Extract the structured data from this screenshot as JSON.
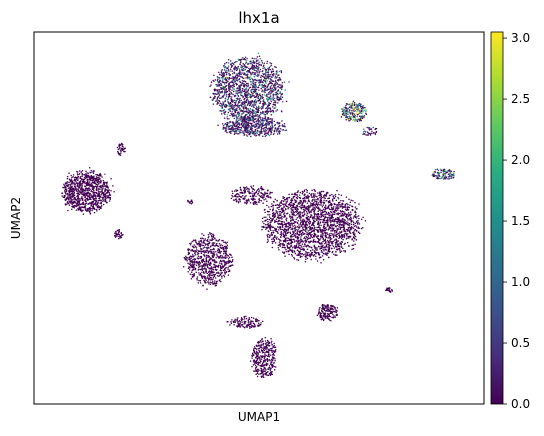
{
  "chart_data": {
    "type": "scatter",
    "title": "lhx1a",
    "xlabel": "UMAP1",
    "ylabel": "UMAP2",
    "x_ticks": [],
    "y_ticks": [],
    "colormap": "viridis",
    "color_range": [
      0.0,
      3.05
    ],
    "colorbar_ticks": [
      "0.0",
      "0.5",
      "1.0",
      "1.5",
      "2.0",
      "2.5",
      "3.0"
    ],
    "point_color_base": "#440154",
    "clusters": [
      {
        "id": "top-center",
        "x": 7.6,
        "y": 8.4,
        "rx": 1.6,
        "ry": 1.15,
        "n": 1500,
        "mean_expr": 0.55
      },
      {
        "id": "top-center-lower",
        "x": 7.8,
        "y": 7.3,
        "rx": 1.35,
        "ry": 0.35,
        "n": 500,
        "mean_expr": 0.45
      },
      {
        "id": "top-right-small",
        "x": 11.6,
        "y": 7.75,
        "rx": 0.55,
        "ry": 0.35,
        "n": 220,
        "mean_expr": 1.85
      },
      {
        "id": "top-right-tail",
        "x": 12.2,
        "y": 7.15,
        "rx": 0.35,
        "ry": 0.15,
        "n": 40,
        "mean_expr": 0.6
      },
      {
        "id": "far-right",
        "x": 15.0,
        "y": 5.85,
        "rx": 0.5,
        "ry": 0.2,
        "n": 120,
        "mean_expr": 1.3
      },
      {
        "id": "left-large",
        "x": 1.5,
        "y": 5.3,
        "rx": 1.05,
        "ry": 0.75,
        "n": 900,
        "mean_expr": 0.05
      },
      {
        "id": "left-top-blob",
        "x": 2.8,
        "y": 6.6,
        "rx": 0.2,
        "ry": 0.2,
        "n": 40,
        "mean_expr": 0.05
      },
      {
        "id": "left-bottom-blob",
        "x": 2.7,
        "y": 4.0,
        "rx": 0.2,
        "ry": 0.15,
        "n": 40,
        "mean_expr": 0.05
      },
      {
        "id": "center-large",
        "x": 10.0,
        "y": 4.3,
        "rx": 2.1,
        "ry": 1.2,
        "n": 2000,
        "mean_expr": 0.05
      },
      {
        "id": "center-strip",
        "x": 7.7,
        "y": 5.2,
        "rx": 0.9,
        "ry": 0.35,
        "n": 200,
        "mean_expr": 0.05
      },
      {
        "id": "lower-left-mid",
        "x": 6.1,
        "y": 3.2,
        "rx": 1.0,
        "ry": 0.9,
        "n": 700,
        "mean_expr": 0.05
      },
      {
        "id": "lower-right-small",
        "x": 10.6,
        "y": 1.6,
        "rx": 0.45,
        "ry": 0.3,
        "n": 150,
        "mean_expr": 0.05
      },
      {
        "id": "lower-mid-small",
        "x": 7.5,
        "y": 1.3,
        "rx": 0.8,
        "ry": 0.2,
        "n": 120,
        "mean_expr": 0.05
      },
      {
        "id": "bottom",
        "x": 8.2,
        "y": 0.2,
        "rx": 0.55,
        "ry": 0.7,
        "n": 350,
        "mean_expr": 0.05
      },
      {
        "id": "right-speck",
        "x": 12.9,
        "y": 2.3,
        "rx": 0.2,
        "ry": 0.1,
        "n": 25,
        "mean_expr": 0.05
      },
      {
        "id": "left-speck",
        "x": 5.4,
        "y": 5.0,
        "rx": 0.15,
        "ry": 0.08,
        "n": 12,
        "mean_expr": 0.05
      }
    ]
  }
}
